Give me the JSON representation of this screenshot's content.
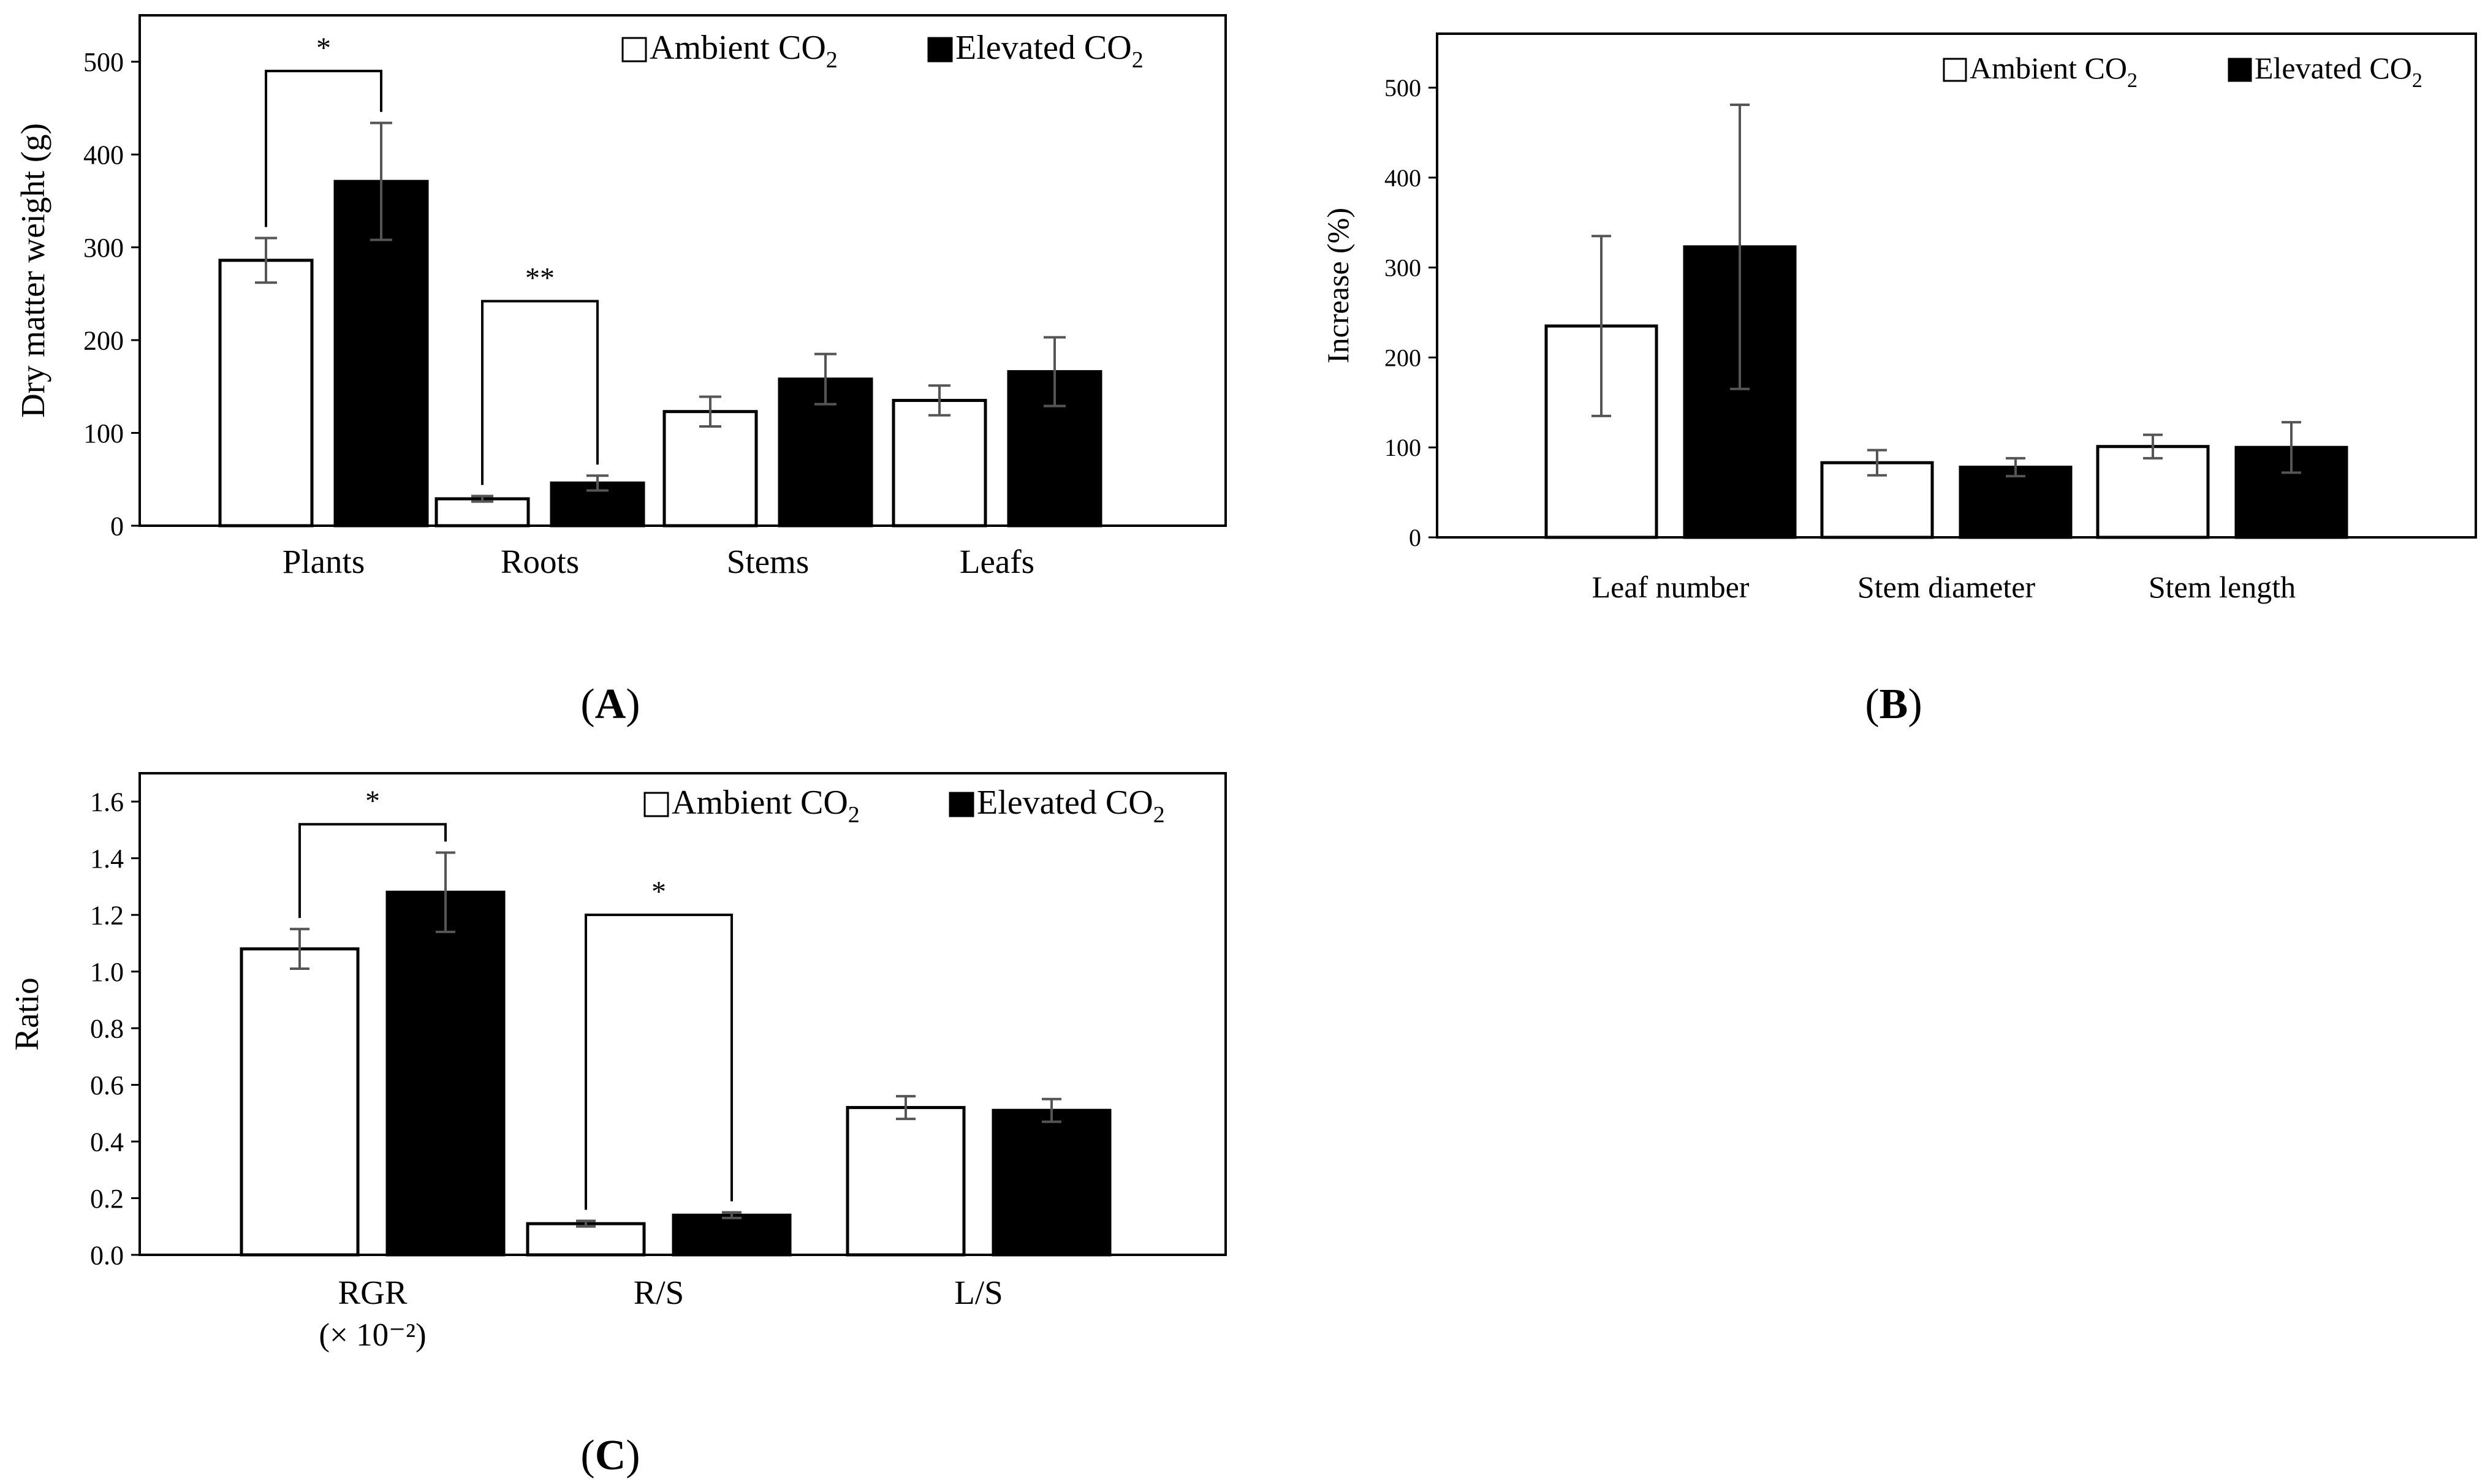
{
  "colors": {
    "ambient_fill": "#ffffff",
    "elevated_fill": "#000000",
    "error_bar": "#555555",
    "axis": "#000000"
  },
  "legend": {
    "ambient_symbol": "□",
    "ambient_label": "Ambient CO",
    "elevated_symbol": "■",
    "elevated_label": "Elevated CO",
    "subscript": "2"
  },
  "chart_data": [
    {
      "panel": "A",
      "panel_label": "A",
      "type": "bar",
      "title": "",
      "xlabel": "",
      "ylabel": "Dry matter weight (g)",
      "ylim": [
        0,
        550
      ],
      "yticks": [
        0,
        100,
        200,
        300,
        400,
        500
      ],
      "ytick_labels": [
        "0",
        "100",
        "200",
        "300",
        "400",
        "500"
      ],
      "categories": [
        {
          "label": "Plants",
          "sublabel": ""
        },
        {
          "label": "Roots",
          "sublabel": ""
        },
        {
          "label": "Stems",
          "sublabel": ""
        },
        {
          "label": "Leafs",
          "sublabel": ""
        }
      ],
      "legend_position": "top-right",
      "series": [
        {
          "name": "Ambient CO2",
          "values": [
            286,
            29,
            123,
            135
          ],
          "errors": [
            24,
            3,
            16,
            16
          ]
        },
        {
          "name": "Elevated CO2",
          "values": [
            371,
            46,
            158,
            166
          ],
          "errors": [
            63,
            8,
            27,
            37
          ]
        }
      ],
      "significance": [
        {
          "category_index": 0,
          "label": "*",
          "bracket_value": 490
        },
        {
          "category_index": 1,
          "label": "**",
          "bracket_value": 242
        }
      ]
    },
    {
      "panel": "B",
      "panel_label": "B",
      "type": "bar",
      "title": "",
      "xlabel": "",
      "ylabel": "Increase (%)",
      "ylim": [
        0,
        560
      ],
      "yticks": [
        0,
        100,
        200,
        300,
        400,
        500
      ],
      "ytick_labels": [
        "0",
        "100",
        "200",
        "300",
        "400",
        "500"
      ],
      "categories": [
        {
          "label": "Leaf number",
          "sublabel": ""
        },
        {
          "label": "Stem diameter",
          "sublabel": ""
        },
        {
          "label": "Stem length",
          "sublabel": ""
        }
      ],
      "legend_position": "top-right",
      "series": [
        {
          "name": "Ambient CO2",
          "values": [
            235,
            83,
            101
          ],
          "errors": [
            100,
            14,
            13
          ]
        },
        {
          "name": "Elevated CO2",
          "values": [
            323,
            78,
            100
          ],
          "errors": [
            158,
            10,
            28
          ]
        }
      ],
      "significance": []
    },
    {
      "panel": "C",
      "panel_label": "C",
      "type": "bar",
      "title": "",
      "xlabel": "",
      "ylabel": "Ratio",
      "ylim": [
        0,
        1.7
      ],
      "yticks": [
        0,
        0.2,
        0.4,
        0.6,
        0.8,
        1.0,
        1.2,
        1.4,
        1.6
      ],
      "ytick_labels": [
        "0.0",
        "0.2",
        "0.4",
        "0.6",
        "0.8",
        "1.0",
        "1.2",
        "1.4",
        "1.6"
      ],
      "categories": [
        {
          "label": "RGR",
          "sublabel": "(× 10⁻²)"
        },
        {
          "label": "R/S",
          "sublabel": ""
        },
        {
          "label": "L/S",
          "sublabel": ""
        }
      ],
      "legend_position": "top-right",
      "series": [
        {
          "name": "Ambient CO2",
          "values": [
            1.08,
            0.11,
            0.52
          ],
          "errors": [
            0.07,
            0.01,
            0.04
          ]
        },
        {
          "name": "Elevated CO2",
          "values": [
            1.28,
            0.14,
            0.51
          ],
          "errors": [
            0.14,
            0.01,
            0.04
          ]
        }
      ],
      "significance": [
        {
          "category_index": 0,
          "label": "*",
          "bracket_value": 1.52
        },
        {
          "category_index": 1,
          "label": "*",
          "bracket_value": 1.2
        }
      ]
    }
  ]
}
